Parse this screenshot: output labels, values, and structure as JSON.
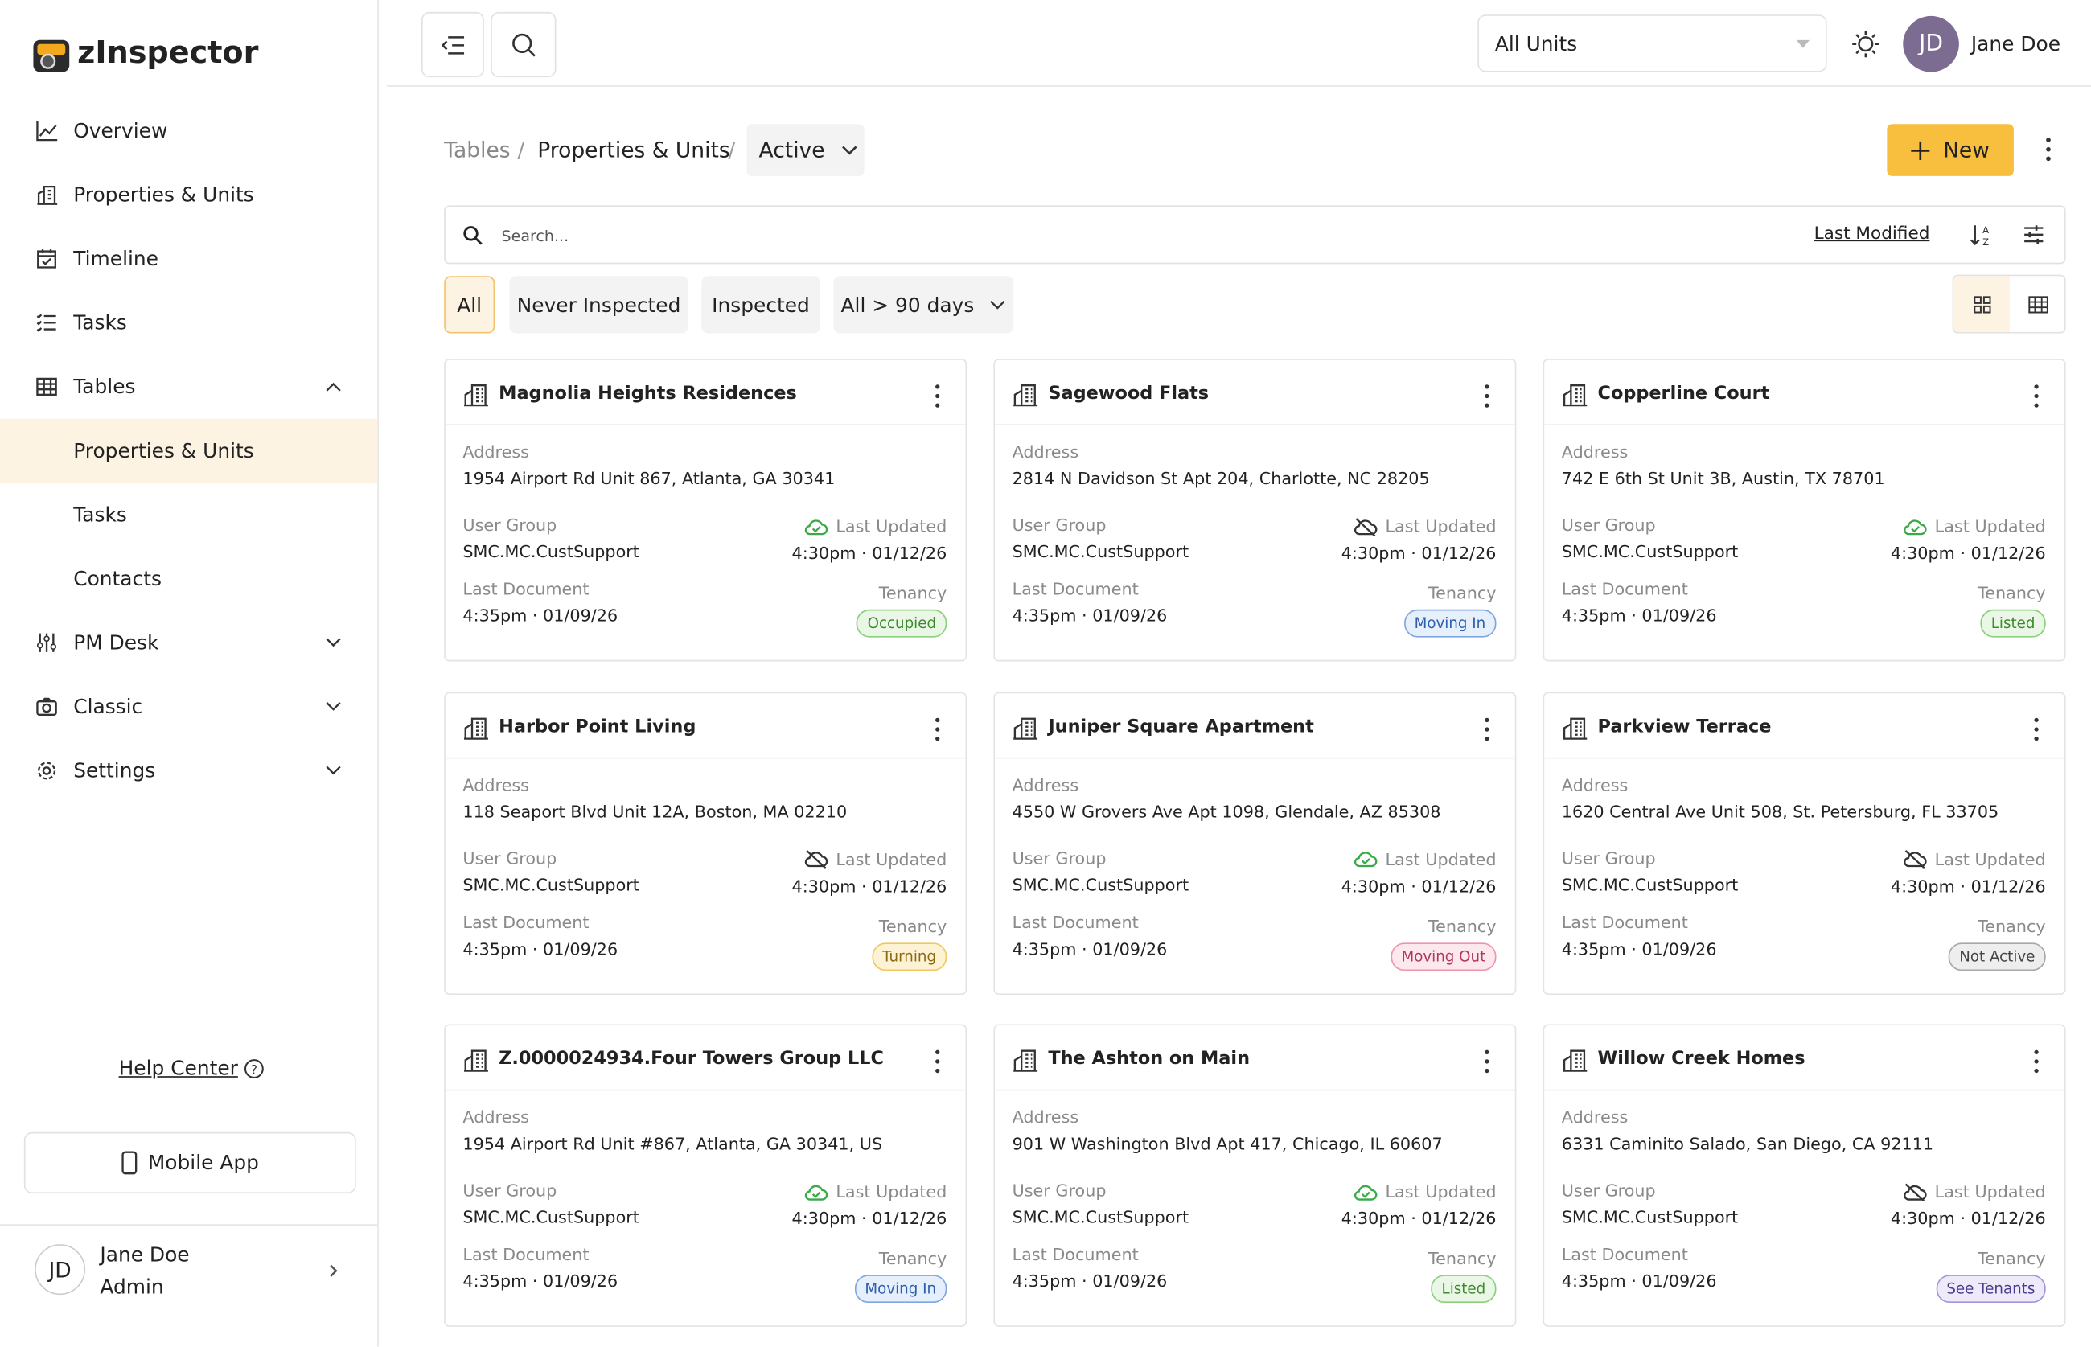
{
  "app": {
    "name": "zInspector"
  },
  "sidebar": {
    "nav": [
      {
        "label": "Overview"
      },
      {
        "label": "Properties & Units"
      },
      {
        "label": "Timeline"
      },
      {
        "label": "Tasks"
      },
      {
        "label": "Tables",
        "children": [
          "Properties & Units",
          "Tasks",
          "Contacts"
        ]
      },
      {
        "label": "PM Desk"
      },
      {
        "label": "Classic"
      },
      {
        "label": "Settings"
      }
    ],
    "help": "Help Center",
    "mobile": "Mobile App",
    "user": {
      "initials": "JD",
      "name": "Jane Doe",
      "role": "Admin"
    }
  },
  "topbar": {
    "unit_select": "All Units",
    "user_initials": "JD",
    "user_name": "Jane Doe"
  },
  "breadcrumb": [
    "Tables",
    "Properties & Units"
  ],
  "status": "Active",
  "new_button": "New",
  "search": {
    "placeholder": "Search...",
    "sort": "Last Modified"
  },
  "filters": [
    "All",
    "Never Inspected",
    "Inspected",
    "All > 90 days"
  ],
  "card_labels": {
    "address": "Address",
    "user_group": "User Group",
    "last_updated": "Last Updated",
    "last_document": "Last Document",
    "tenancy": "Tenancy"
  },
  "cards": [
    {
      "name": "Magnolia Heights Residences",
      "address": "1954 Airport Rd Unit 867, Atlanta, GA 30341",
      "user_group": "SMC.MC.CustSupport",
      "last_updated": "4:30pm · 01/12/26",
      "last_document": "4:35pm · 01/09/26",
      "tenancy": "Occupied",
      "tenancy_color": "green",
      "synced": true
    },
    {
      "name": "Sagewood Flats",
      "address": "2814 N Davidson St Apt 204, Charlotte, NC 28205",
      "user_group": "SMC.MC.CustSupport",
      "last_updated": "4:30pm · 01/12/26",
      "last_document": "4:35pm · 01/09/26",
      "tenancy": "Moving In",
      "tenancy_color": "blue",
      "synced": false
    },
    {
      "name": "Copperline Court",
      "address": "742 E 6th St Unit 3B, Austin, TX 78701",
      "user_group": "SMC.MC.CustSupport",
      "last_updated": "4:30pm · 01/12/26",
      "last_document": "4:35pm · 01/09/26",
      "tenancy": "Listed",
      "tenancy_color": "green",
      "synced": true
    },
    {
      "name": "Harbor Point Living",
      "address": "118 Seaport Blvd Unit 12A, Boston, MA 02210",
      "user_group": "SMC.MC.CustSupport",
      "last_updated": "4:30pm · 01/12/26",
      "last_document": "4:35pm · 01/09/26",
      "tenancy": "Turning",
      "tenancy_color": "yellow",
      "synced": false
    },
    {
      "name": "Juniper Square Apartment",
      "address": "4550 W Grovers Ave Apt 1098, Glendale, AZ 85308",
      "user_group": "SMC.MC.CustSupport",
      "last_updated": "4:30pm · 01/12/26",
      "last_document": "4:35pm · 01/09/26",
      "tenancy": "Moving Out",
      "tenancy_color": "pink",
      "synced": true
    },
    {
      "name": "Parkview Terrace",
      "address": "1620 Central Ave Unit 508, St. Petersburg, FL 33705",
      "user_group": "SMC.MC.CustSupport",
      "last_updated": "4:30pm · 01/12/26",
      "last_document": "4:35pm · 01/09/26",
      "tenancy": "Not Active",
      "tenancy_color": "gray",
      "synced": false
    },
    {
      "name": "Z.0000024934.Four Towers Group LLC",
      "address": "1954 Airport Rd Unit #867, Atlanta, GA 30341, US",
      "user_group": "SMC.MC.CustSupport",
      "last_updated": "4:30pm · 01/12/26",
      "last_document": "4:35pm · 01/09/26",
      "tenancy": "Moving In",
      "tenancy_color": "blue",
      "synced": true
    },
    {
      "name": "The Ashton on Main",
      "address": "901 W Washington Blvd Apt 417, Chicago, IL 60607",
      "user_group": "SMC.MC.CustSupport",
      "last_updated": "4:30pm · 01/12/26",
      "last_document": "4:35pm · 01/09/26",
      "tenancy": "Listed",
      "tenancy_color": "green",
      "synced": true
    },
    {
      "name": "Willow Creek Homes",
      "address": "6331 Caminito Salado, San Diego, CA 92111",
      "user_group": "SMC.MC.CustSupport",
      "last_updated": "4:30pm · 01/12/26",
      "last_document": "4:35pm · 01/09/26",
      "tenancy": "See Tenants",
      "tenancy_color": "purple",
      "synced": false
    }
  ]
}
